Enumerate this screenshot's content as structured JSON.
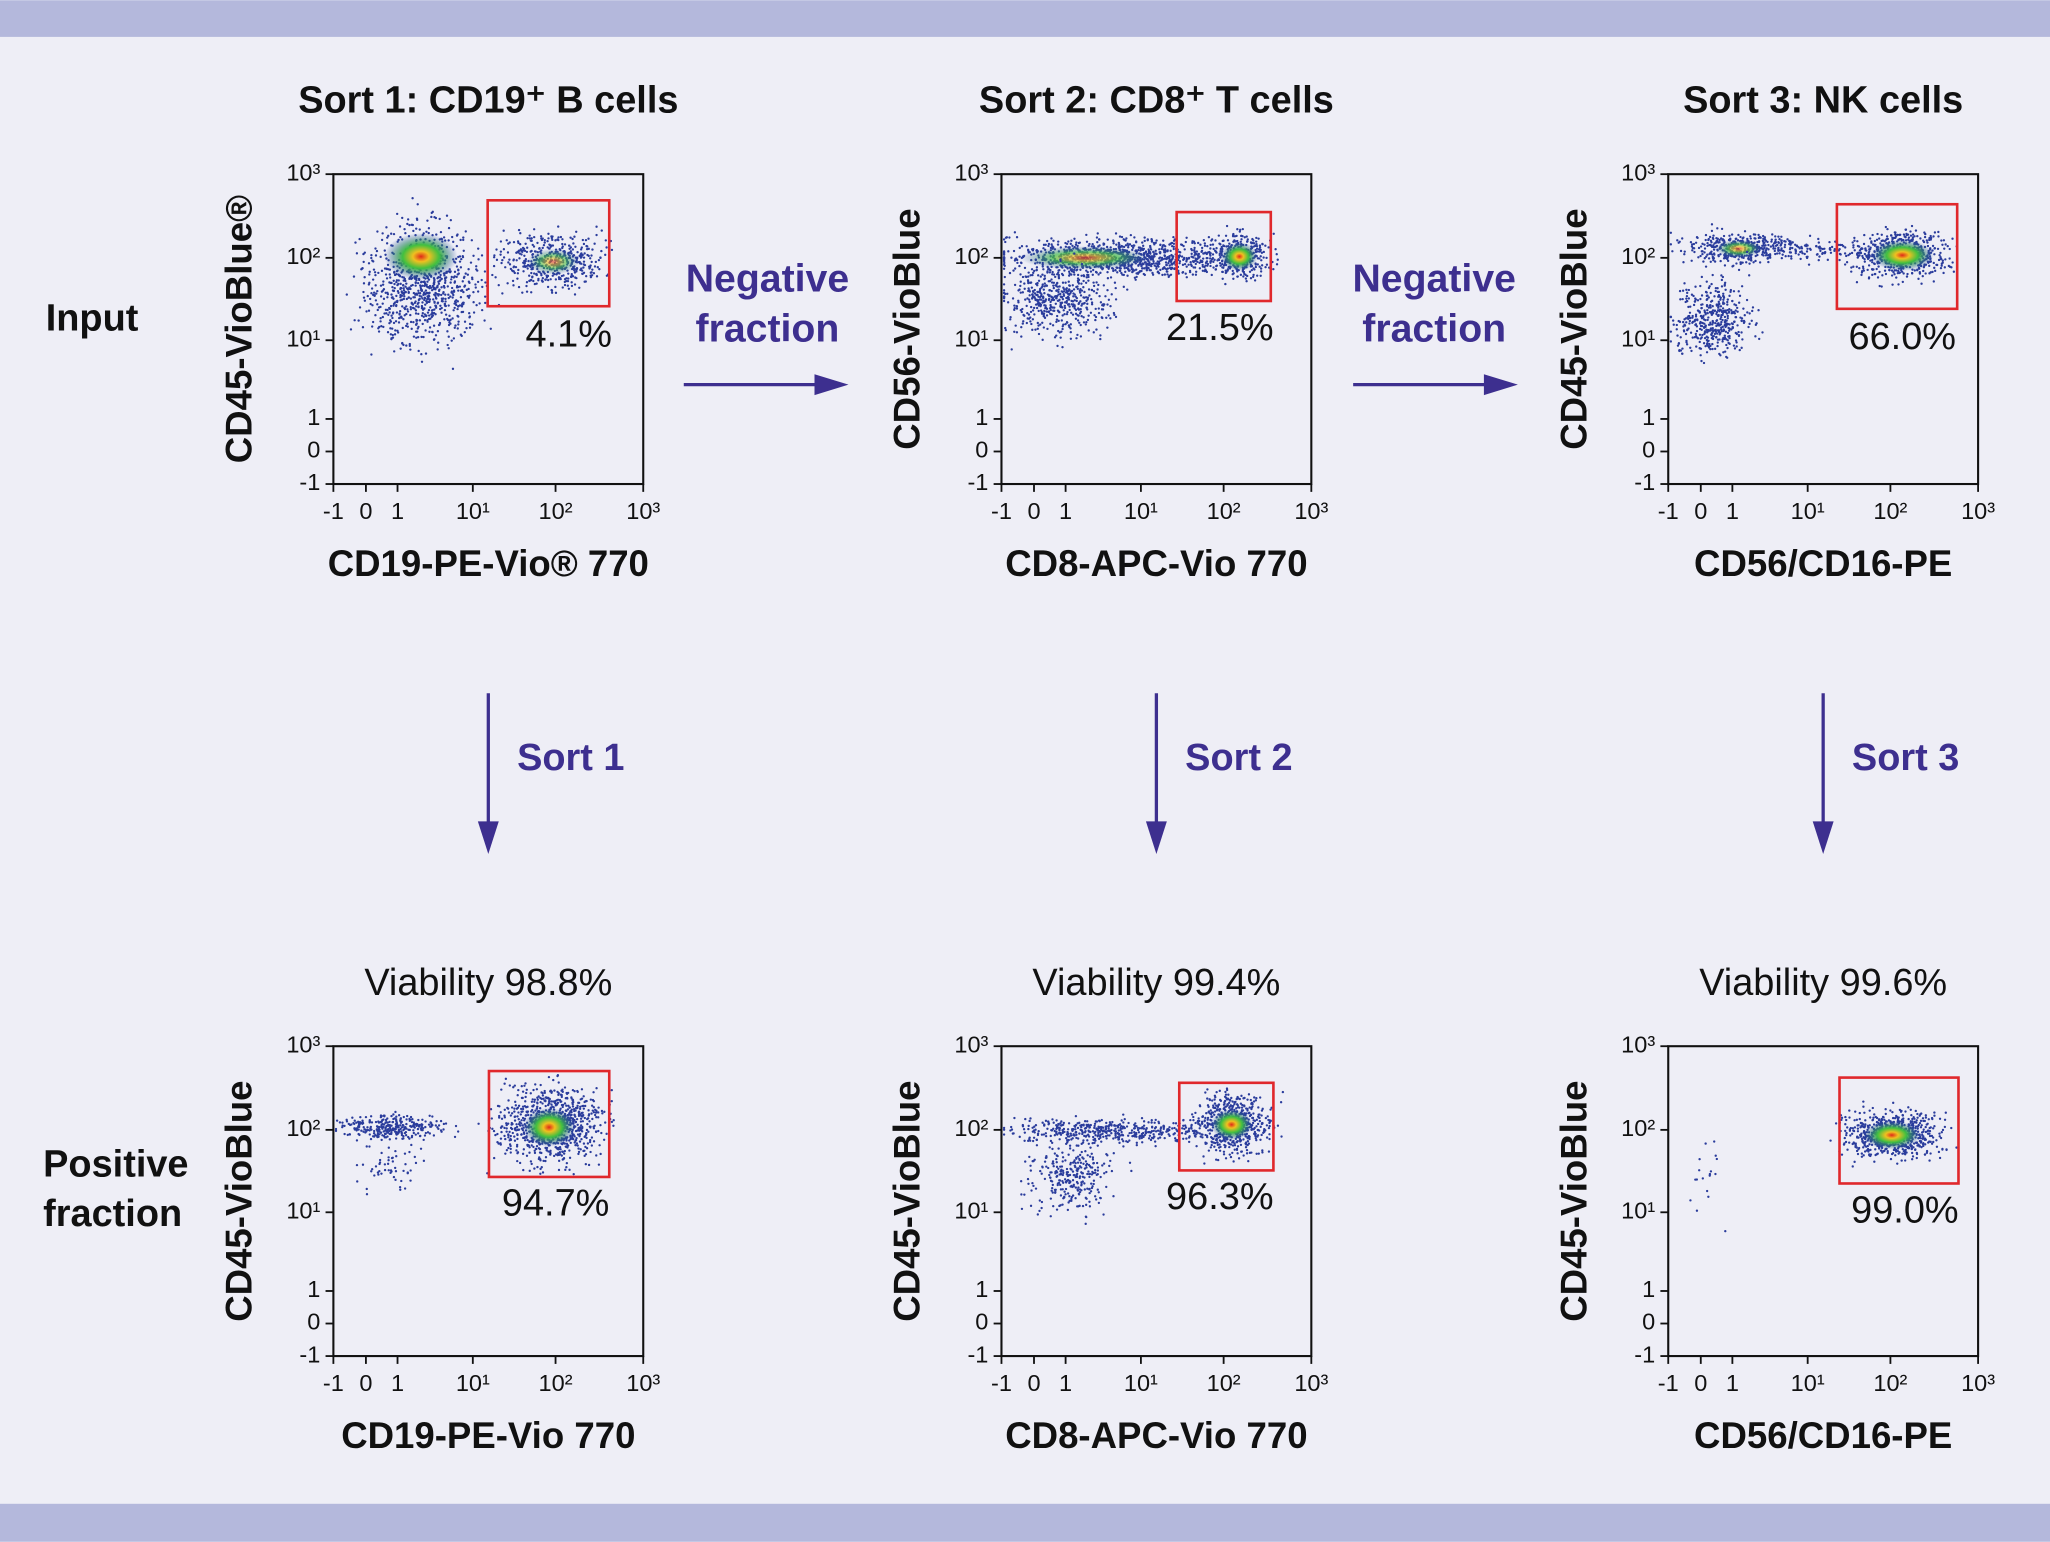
{
  "row_labels": [
    [
      "Input"
    ],
    [
      "Positive",
      "fraction"
    ]
  ],
  "axis_tick_labels": [
    "-1",
    "0",
    "1",
    "10¹",
    "10²",
    "10³"
  ],
  "negative_fraction_arrows": [
    [
      "Negative",
      "fraction"
    ],
    [
      "Negative",
      "fraction"
    ]
  ],
  "panels": [
    {
      "title": "Sort 1: CD19⁺ B cells",
      "input_plot": {
        "x_label": "CD19-PE-Vio® 770",
        "y_label": "CD45-VioBlue®",
        "gate_percent": "4.1%"
      },
      "sort_label": "Sort 1",
      "viability": "Viability 98.8%",
      "positive_plot": {
        "x_label": "CD19-PE-Vio 770",
        "y_label": "CD45-VioBlue",
        "gate_percent": "94.7%"
      }
    },
    {
      "title": "Sort 2: CD8⁺ T cells",
      "input_plot": {
        "x_label": "CD8-APC-Vio 770",
        "y_label": "CD56-VioBlue",
        "gate_percent": "21.5%"
      },
      "sort_label": "Sort 2",
      "viability": "Viability 99.4%",
      "positive_plot": {
        "x_label": "CD8-APC-Vio 770",
        "y_label": "CD45-VioBlue",
        "gate_percent": "96.3%"
      }
    },
    {
      "title": "Sort 3: NK cells",
      "input_plot": {
        "x_label": "CD56/CD16-PE",
        "y_label": "CD45-VioBlue",
        "gate_percent": "66.0%"
      },
      "sort_label": "Sort 3",
      "viability": "Viability 99.6%",
      "positive_plot": {
        "x_label": "CD56/CD16-PE",
        "y_label": "CD45-VioBlue",
        "gate_percent": "99.0%"
      }
    }
  ]
}
